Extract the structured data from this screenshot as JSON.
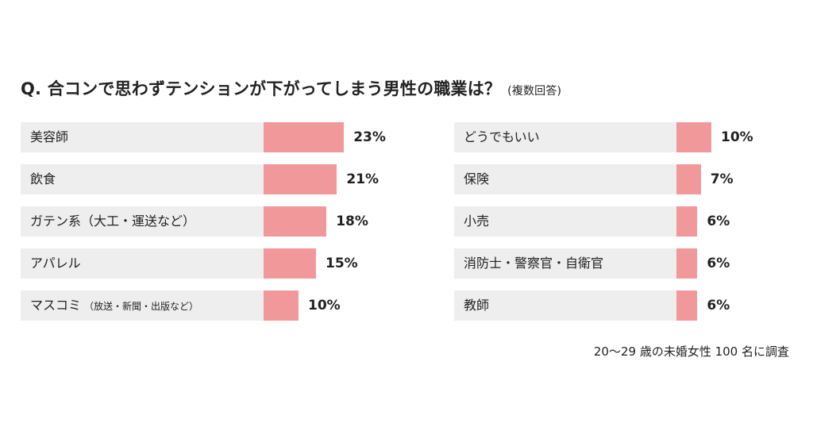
{
  "colors": {
    "bar": "#f1999a",
    "label_bg": "#eeeeee",
    "text": "#222222"
  },
  "title": "Q. 合コンで思わずテンションが下がってしまう男性の職業は？",
  "subtitle": "(複数回答)",
  "note": "20〜29 歳の未婚女性 100 名に調査",
  "chart_data": {
    "type": "bar",
    "orientation": "horizontal",
    "unit": "%",
    "title": "Q. 合コンで思わずテンションが下がってしまう男性の職業は？",
    "subtitle": "(複数回答)",
    "left": [
      {
        "label": "美容師",
        "value": 23,
        "value_label": "23%"
      },
      {
        "label": "飲食",
        "value": 21,
        "value_label": "21%"
      },
      {
        "label": "ガテン系（大工・運送など）",
        "value": 18,
        "value_label": "18%"
      },
      {
        "label": "アパレル",
        "value": 15,
        "value_label": "15%"
      },
      {
        "label": "マスコミ",
        "detail": "（放送・新聞・出版など）",
        "value": 10,
        "value_label": "10%"
      }
    ],
    "right": [
      {
        "label": "どうでもいい",
        "value": 10,
        "value_label": "10%"
      },
      {
        "label": "保険",
        "value": 7,
        "value_label": "7%"
      },
      {
        "label": "小売",
        "value": 6,
        "value_label": "6%"
      },
      {
        "label": "消防士・警察官・自衛官",
        "value": 6,
        "value_label": "6%"
      },
      {
        "label": "教師",
        "value": 6,
        "value_label": "6%"
      }
    ]
  }
}
